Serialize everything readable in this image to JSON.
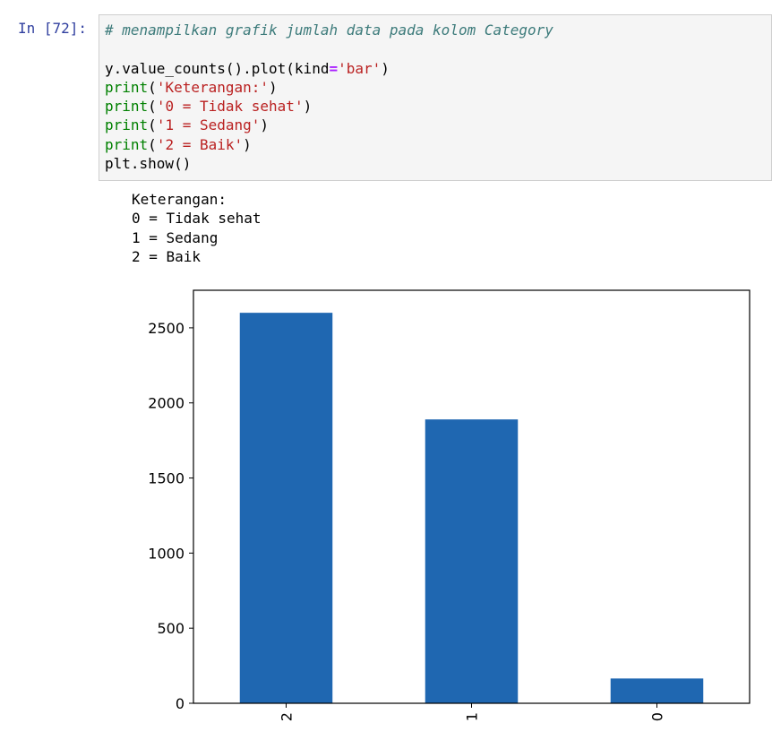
{
  "cell": {
    "prompt": "In [72]:",
    "code_lines": [
      [
        {
          "t": "# menampilkan grafik jumlah data pada kolom Category",
          "c": "comment"
        }
      ],
      [
        {
          "t": "",
          "c": ""
        }
      ],
      [
        {
          "t": "y.value_counts().plot(kind",
          "c": ""
        },
        {
          "t": "=",
          "c": "op"
        },
        {
          "t": "'bar'",
          "c": "str"
        },
        {
          "t": ")",
          "c": ""
        }
      ],
      [
        {
          "t": "print",
          "c": "builtin"
        },
        {
          "t": "(",
          "c": ""
        },
        {
          "t": "'Keterangan:'",
          "c": "str"
        },
        {
          "t": ")",
          "c": ""
        }
      ],
      [
        {
          "t": "print",
          "c": "builtin"
        },
        {
          "t": "(",
          "c": ""
        },
        {
          "t": "'0 = Tidak sehat'",
          "c": "str"
        },
        {
          "t": ")",
          "c": ""
        }
      ],
      [
        {
          "t": "print",
          "c": "builtin"
        },
        {
          "t": "(",
          "c": ""
        },
        {
          "t": "'1 = Sedang'",
          "c": "str"
        },
        {
          "t": ")",
          "c": ""
        }
      ],
      [
        {
          "t": "print",
          "c": "builtin"
        },
        {
          "t": "(",
          "c": ""
        },
        {
          "t": "'2 = Baik'",
          "c": "str"
        },
        {
          "t": ")",
          "c": ""
        }
      ],
      [
        {
          "t": "plt.show()",
          "c": ""
        }
      ]
    ],
    "output_lines": [
      "Keterangan:",
      "0 = Tidak sehat",
      "1 = Sedang",
      "2 = Baik"
    ]
  },
  "chart_data": {
    "type": "bar",
    "categories": [
      "2",
      "1",
      "0"
    ],
    "values": [
      2600,
      1890,
      165
    ],
    "ylim": [
      0,
      2750
    ],
    "yticks": [
      0,
      500,
      1000,
      1500,
      2000,
      2500
    ],
    "title": "",
    "xlabel": "",
    "ylabel": "",
    "bar_color": "#1f67b1",
    "grid": false
  }
}
